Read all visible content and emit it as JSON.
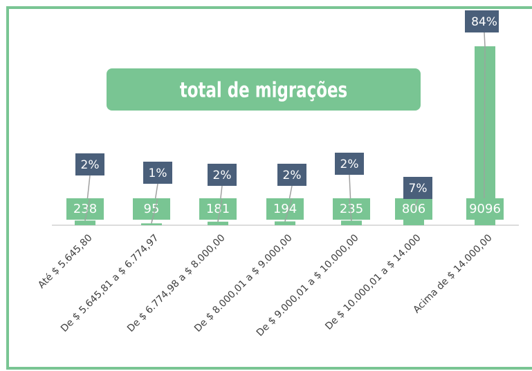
{
  "chart_data": {
    "type": "bar",
    "title": "total de migrações",
    "categories": [
      "Até $ 5.645,80",
      "De $ 5.645,81 a $ 6.774,97",
      "De $ 6.774,98 a $ 8.000,00",
      "De $ 8.000,01 a $ 9.000,00",
      "De $ 9.000,01 a $ 10.000,00",
      "De $ 10.000,01 a $ 14.000",
      "Acima de $ 14.000,00"
    ],
    "values": [
      238,
      95,
      181,
      194,
      235,
      806,
      9096
    ],
    "shares": [
      2,
      1,
      2,
      2,
      2,
      7,
      84
    ],
    "share_labels": [
      "2%",
      "1%",
      "2%",
      "2%",
      "2%",
      "7%",
      "84%"
    ],
    "color": "#79c593",
    "share_color": "#4a5f7a"
  }
}
